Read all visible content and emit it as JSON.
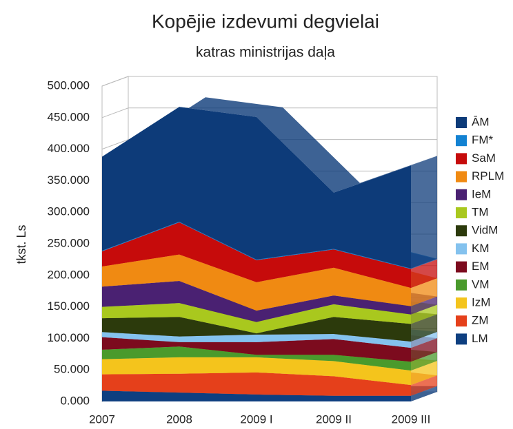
{
  "chart_data": {
    "type": "area3d",
    "title": "Kopējie izdevumi degvielai",
    "subtitle": "katras ministrijas daļa",
    "y_label": "tkst. Ls",
    "categories": [
      "2007",
      "2008",
      "2009 I",
      "2009 II",
      "2009 III"
    ],
    "ylim": [
      0,
      500000
    ],
    "yticks": [
      {
        "value": 0,
        "label": "0.000"
      },
      {
        "value": 50000,
        "label": "50.000"
      },
      {
        "value": 100000,
        "label": "100.000"
      },
      {
        "value": 150000,
        "label": "150.000"
      },
      {
        "value": 200000,
        "label": "200.000"
      },
      {
        "value": 250000,
        "label": "250.000"
      },
      {
        "value": 300000,
        "label": "300.000"
      },
      {
        "value": 350000,
        "label": "350.000"
      },
      {
        "value": 400000,
        "label": "400.000"
      },
      {
        "value": 450000,
        "label": "450.000"
      },
      {
        "value": 500000,
        "label": "500.000"
      }
    ],
    "grid": true,
    "stacked": true,
    "legend": "right",
    "series": [
      {
        "name": "LM",
        "color": "#0e3f80",
        "values": [
          17000,
          14000,
          11000,
          9000,
          9000
        ]
      },
      {
        "name": "ZM",
        "color": "#e5401b",
        "values": [
          26000,
          30000,
          35000,
          31000,
          17000
        ]
      },
      {
        "name": "IzM",
        "color": "#f4c41c",
        "values": [
          24000,
          26000,
          24000,
          24000,
          23000
        ]
      },
      {
        "name": "VM",
        "color": "#4a9a2c",
        "values": [
          15000,
          17000,
          4000,
          10000,
          14000
        ]
      },
      {
        "name": "EM",
        "color": "#7c0b1e",
        "values": [
          20000,
          7000,
          20000,
          25000,
          22000
        ]
      },
      {
        "name": "KM",
        "color": "#84c2ee",
        "values": [
          8000,
          9000,
          12000,
          8000,
          10000
        ]
      },
      {
        "name": "VidM",
        "color": "#2c3a0c",
        "values": [
          22000,
          31000,
          2000,
          27000,
          28000
        ]
      },
      {
        "name": "TM",
        "color": "#a9c81e",
        "values": [
          18000,
          22000,
          18000,
          20000,
          15000
        ]
      },
      {
        "name": "IeM",
        "color": "#4a2172",
        "values": [
          32000,
          35000,
          18000,
          14000,
          13000
        ]
      },
      {
        "name": "RPLM",
        "color": "#f08a12",
        "values": [
          32000,
          42000,
          45000,
          44000,
          29000
        ]
      },
      {
        "name": "SaM",
        "color": "#c60b0b",
        "values": [
          24000,
          51000,
          35000,
          29000,
          30000
        ]
      },
      {
        "name": "FM*",
        "color": "#1382d2",
        "values": [
          1000,
          1000,
          1000,
          1000,
          1000
        ]
      },
      {
        "name": "ĀM",
        "color": "#0d3b79",
        "values": [
          149000,
          182000,
          226000,
          89000,
          163000
        ]
      }
    ]
  }
}
